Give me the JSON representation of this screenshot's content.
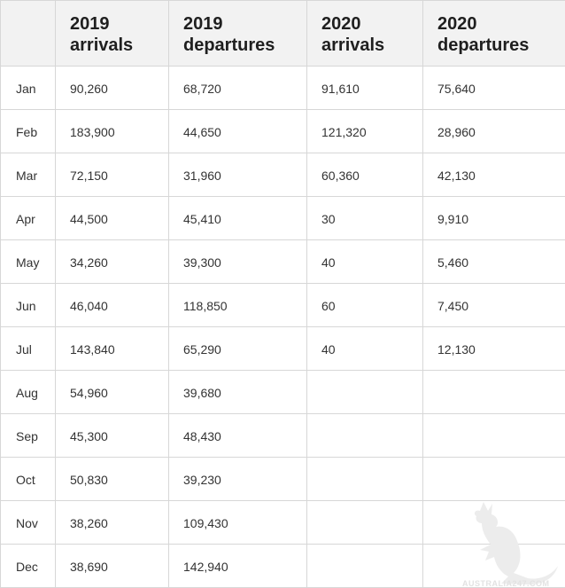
{
  "table": {
    "headers": [
      "",
      "2019\narrivals",
      "2019\ndepartures",
      "2020\narrivals",
      "2020\ndepartures"
    ],
    "header_lines": [
      [
        "",
        ""
      ],
      [
        "2019",
        "arrivals"
      ],
      [
        "2019",
        "departures"
      ],
      [
        "2020",
        "arrivals"
      ],
      [
        "2020",
        "departures"
      ]
    ],
    "rows": [
      [
        "Jan",
        "90,260",
        "68,720",
        "91,610",
        "75,640"
      ],
      [
        "Feb",
        "183,900",
        "44,650",
        "121,320",
        "28,960"
      ],
      [
        "Mar",
        "72,150",
        "31,960",
        "60,360",
        "42,130"
      ],
      [
        "Apr",
        "44,500",
        "45,410",
        "30",
        "9,910"
      ],
      [
        "May",
        "34,260",
        "39,300",
        "40",
        "5,460"
      ],
      [
        "Jun",
        "46,040",
        "118,850",
        "60",
        "7,450"
      ],
      [
        "Jul",
        "143,840",
        "65,290",
        "40",
        "12,130"
      ],
      [
        "Aug",
        "54,960",
        "39,680",
        "",
        ""
      ],
      [
        "Sep",
        "45,300",
        "48,430",
        "",
        ""
      ],
      [
        "Oct",
        "50,830",
        "39,230",
        "",
        ""
      ],
      [
        "Nov",
        "38,260",
        "109,430",
        "",
        ""
      ],
      [
        "Dec",
        "38,690",
        "142,940",
        "",
        ""
      ]
    ]
  },
  "watermark": {
    "icon": "kangaroo-icon",
    "text": "AUSTRALIA247.COM",
    "color": "#e8e8e8"
  }
}
